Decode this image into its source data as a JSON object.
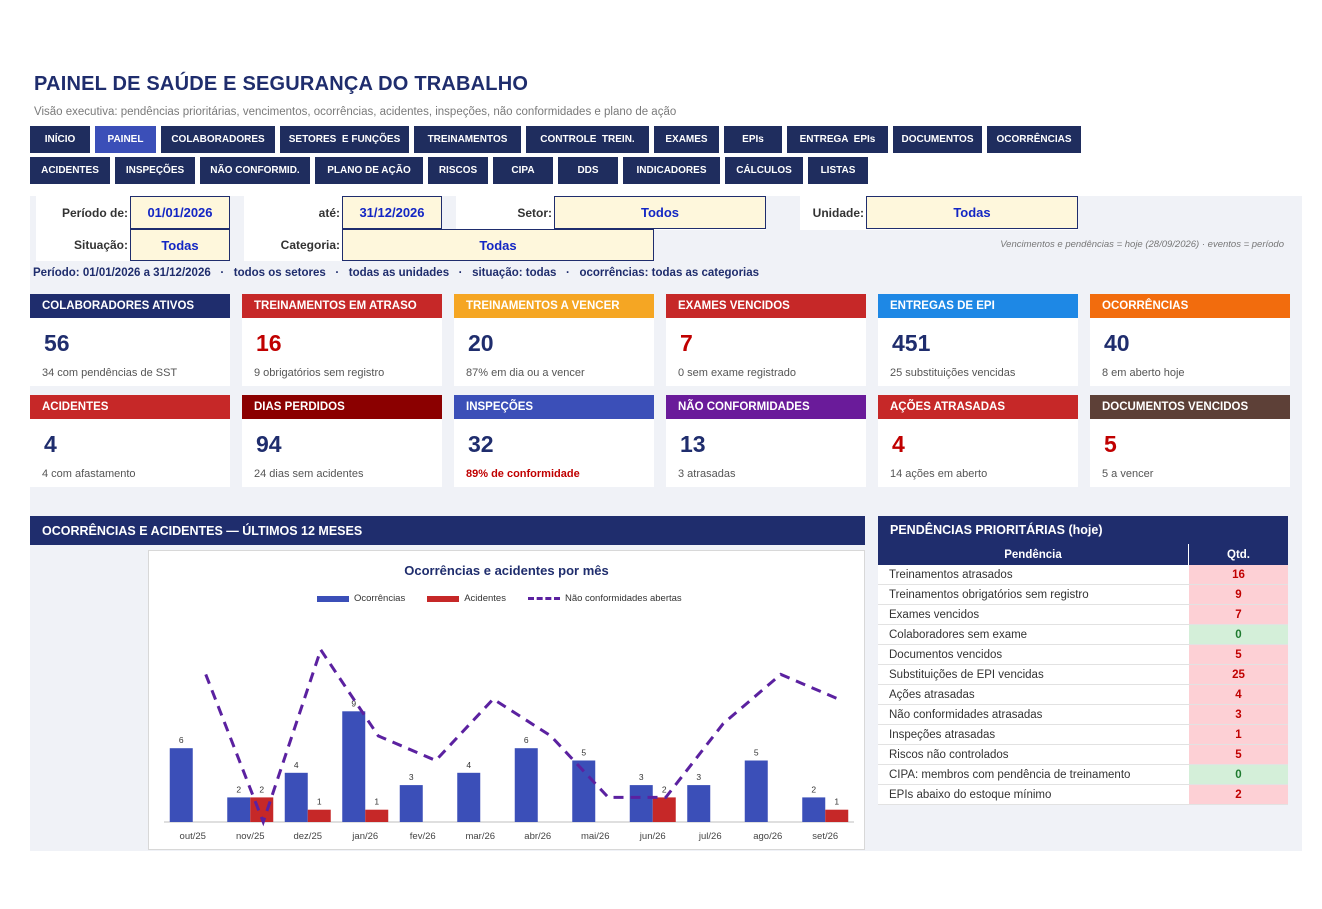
{
  "header": {
    "title": "PAINEL DE SAÚDE E SEGURANÇA DO TRABALHO",
    "subtitle": "Visão executiva: pendências prioritárias, vencimentos, ocorrências, acidentes, inspeções, não conformidades e plano de ação"
  },
  "nav": {
    "row1": [
      "INÍCIO",
      "PAINEL",
      "COLABORADORES",
      "SETORES  E FUNÇÕES",
      "TREINAMENTOS",
      "CONTROLE  TREIN.",
      "EXAMES",
      "EPIs",
      "ENTREGA  EPIs",
      "DOCUMENTOS",
      "OCORRÊNCIAS"
    ],
    "row2": [
      "ACIDENTES",
      "INSPEÇÕES",
      "NÃO CONFORMID.",
      "PLANO DE AÇÃO",
      "RISCOS",
      "CIPA",
      "DDS",
      "INDICADORES",
      "CÁLCULOS",
      "LISTAS"
    ],
    "active": "PAINEL"
  },
  "filters": {
    "periodo_label": "Período de:",
    "periodo_de": "01/01/2026",
    "ate_label": "até:",
    "periodo_ate": "31/12/2026",
    "setor_label": "Setor:",
    "setor": "Todos",
    "unidade_label": "Unidade:",
    "unidade": "Todas",
    "situacao_label": "Situação:",
    "situacao": "Todas",
    "categoria_label": "Categoria:",
    "categoria": "Todas",
    "note": "Vencimentos e pendências = hoje (28/09/2026) · eventos = período",
    "summary": "Período: 01/01/2026 a 31/12/2026   ·   todos os setores   ·   todas as unidades   ·   situação: todas   ·   ocorrências: todas as categorias"
  },
  "cards": [
    {
      "title": "COLABORADORES ATIVOS",
      "value": "56",
      "sub": "34 com pendências de SST",
      "color": "#1f2d6d"
    },
    {
      "title": "TREINAMENTOS EM ATRASO",
      "value": "16",
      "sub": "9 obrigatórios sem registro",
      "color": "#c62828"
    },
    {
      "title": "TREINAMENTOS A VENCER",
      "value": "20",
      "sub": "87% em dia ou a vencer",
      "color": "#f5a623"
    },
    {
      "title": "EXAMES VENCIDOS",
      "value": "7",
      "sub": "0 sem exame registrado",
      "color": "#c62828"
    },
    {
      "title": "ENTREGAS DE EPI",
      "value": "451",
      "sub": "25 substituições vencidas",
      "color": "#1e88e5"
    },
    {
      "title": "OCORRÊNCIAS",
      "value": "40",
      "sub": "8 em aberto hoje",
      "color": "#f26c0d"
    },
    {
      "title": "ACIDENTES",
      "value": "4",
      "sub": "4 com afastamento",
      "color": "#c62828"
    },
    {
      "title": "DIAS PERDIDOS",
      "value": "94",
      "sub": "24 dias sem acidentes",
      "color": "#8b0000"
    },
    {
      "title": "INSPEÇÕES",
      "value": "32",
      "sub": "89% de conformidade",
      "color": "#3b4fb8"
    },
    {
      "title": "NÃO CONFORMIDADES",
      "value": "13",
      "sub": "3 atrasadas",
      "color": "#6a1b9a"
    },
    {
      "title": "AÇÕES ATRASADAS",
      "value": "4",
      "sub": "14 ações em aberto",
      "color": "#c62828"
    },
    {
      "title": "DOCUMENTOS VENCIDOS",
      "value": "5",
      "sub": "5 a vencer",
      "color": "#5d4037"
    }
  ],
  "chart_section": {
    "title": "OCORRÊNCIAS E ACIDENTES — ÚLTIMOS 12 MESES"
  },
  "chart_data": {
    "type": "bar",
    "title": "Ocorrências e acidentes por mês",
    "categories": [
      "out/25",
      "nov/25",
      "dez/25",
      "jan/26",
      "fev/26",
      "mar/26",
      "abr/26",
      "mai/26",
      "jun/26",
      "jul/26",
      "ago/26",
      "set/26"
    ],
    "series": [
      {
        "name": "Ocorrências",
        "type": "bar",
        "color": "#3b4fb8",
        "values": [
          6,
          2,
          4,
          9,
          3,
          4,
          6,
          5,
          3,
          3,
          5,
          2
        ]
      },
      {
        "name": "Acidentes",
        "type": "bar",
        "color": "#c62828",
        "values": [
          0,
          2,
          1,
          1,
          0,
          0,
          0,
          0,
          2,
          0,
          0,
          1
        ]
      },
      {
        "name": "Não conformidades abertas",
        "type": "line",
        "style": "dashed",
        "color": "#5b21a0",
        "values": [
          12,
          0,
          14,
          7,
          5,
          10,
          7,
          2,
          2,
          8,
          12,
          10
        ]
      }
    ],
    "ylim": [
      0,
      15
    ],
    "grid": false,
    "legend": "top"
  },
  "pendencias": {
    "title": "PENDÊNCIAS PRIORITÁRIAS (hoje)",
    "col_pendencia": "Pendência",
    "col_qtd": "Qtd.",
    "rows": [
      {
        "label": "Treinamentos atrasados",
        "qtd": "16",
        "status": "bad"
      },
      {
        "label": "Treinamentos obrigatórios sem registro",
        "qtd": "9",
        "status": "bad"
      },
      {
        "label": "Exames vencidos",
        "qtd": "7",
        "status": "bad"
      },
      {
        "label": "Colaboradores sem exame",
        "qtd": "0",
        "status": "ok"
      },
      {
        "label": "Documentos vencidos",
        "qtd": "5",
        "status": "bad"
      },
      {
        "label": "Substituições de EPI vencidas",
        "qtd": "25",
        "status": "bad"
      },
      {
        "label": "Ações atrasadas",
        "qtd": "4",
        "status": "bad"
      },
      {
        "label": "Não conformidades atrasadas",
        "qtd": "3",
        "status": "bad"
      },
      {
        "label": "Inspeções atrasadas",
        "qtd": "1",
        "status": "bad"
      },
      {
        "label": "Riscos não controlados",
        "qtd": "5",
        "status": "bad"
      },
      {
        "label": "CIPA: membros com pendência de treinamento",
        "qtd": "0",
        "status": "ok"
      },
      {
        "label": "EPIs abaixo do estoque mínimo",
        "qtd": "2",
        "status": "bad"
      }
    ]
  }
}
